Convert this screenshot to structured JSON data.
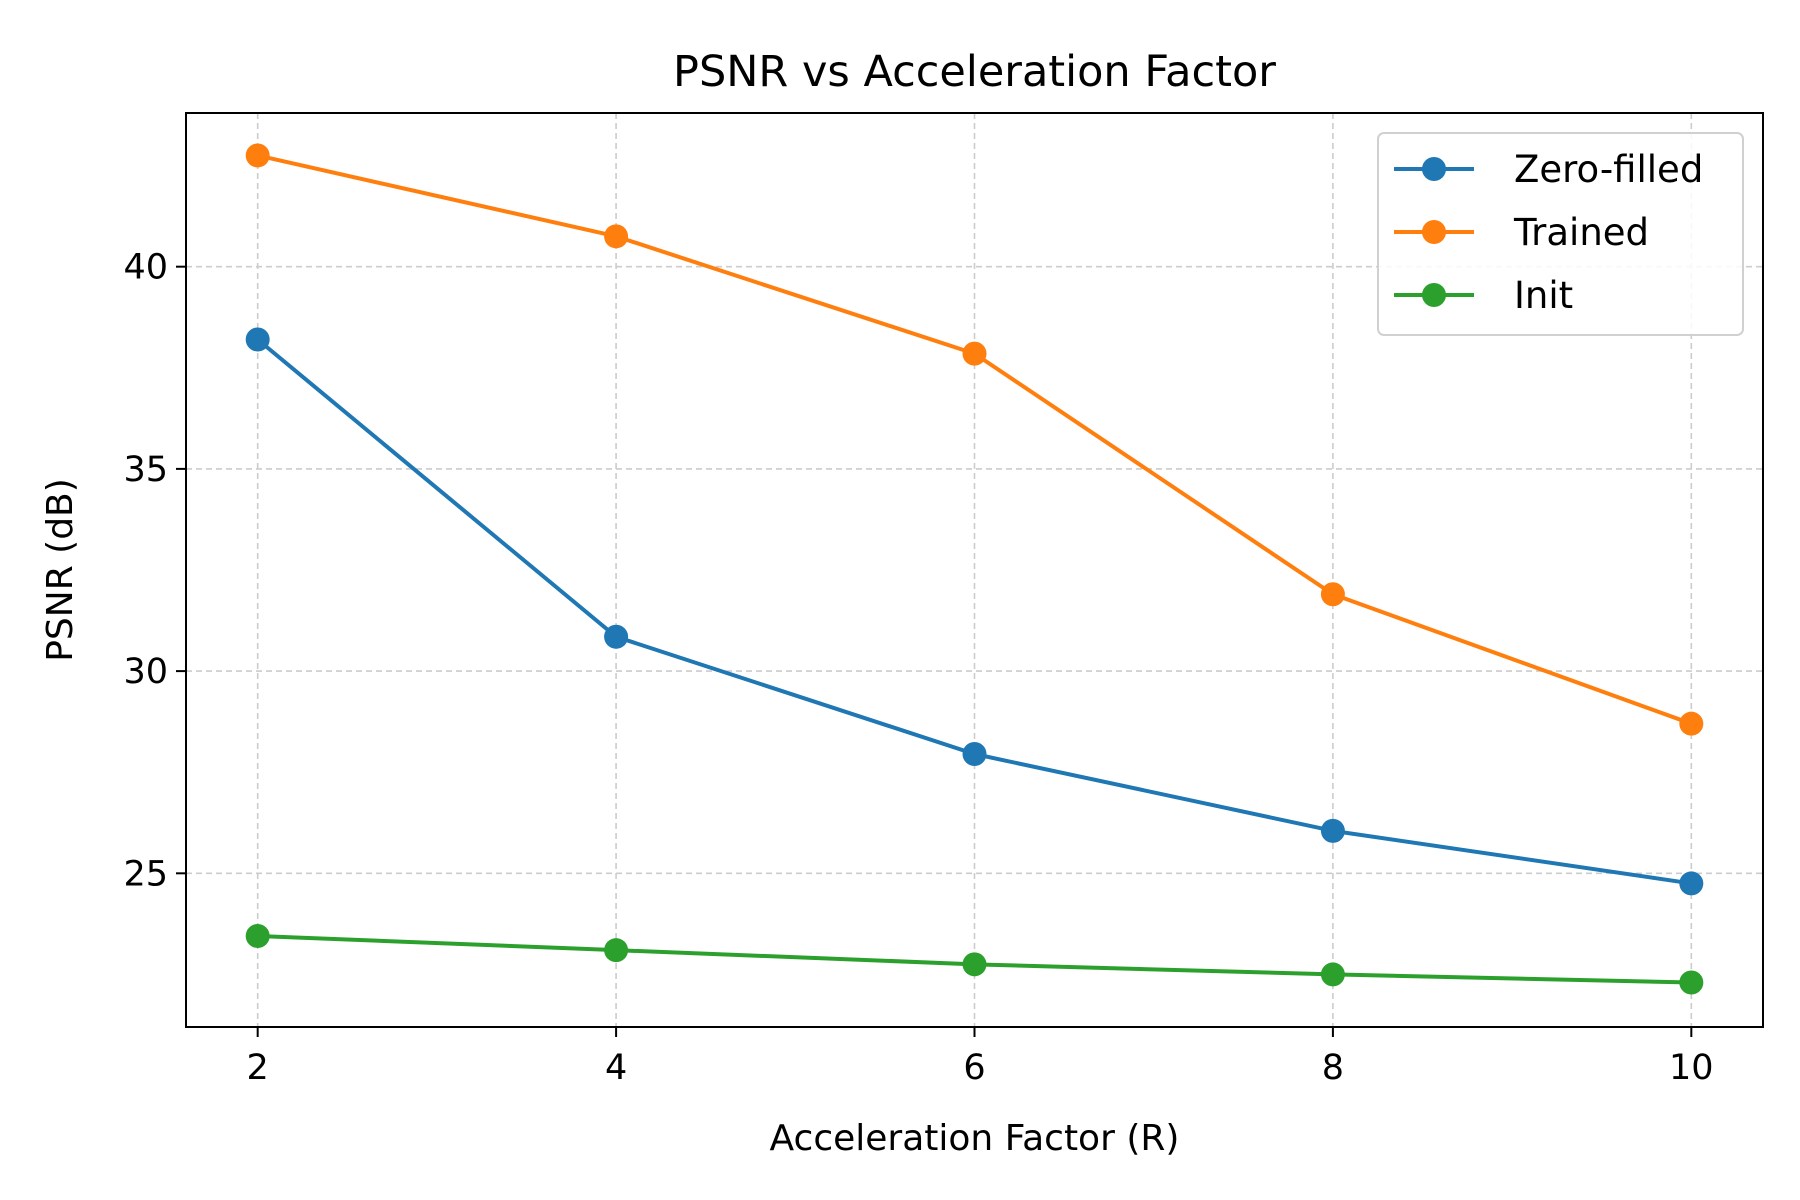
{
  "chart_data": {
    "type": "line",
    "title": "PSNR vs Acceleration Factor",
    "xlabel": "Acceleration Factor (R)",
    "ylabel": "PSNR (dB)",
    "x": [
      2,
      4,
      6,
      8,
      10
    ],
    "xticks": [
      "2",
      "4",
      "6",
      "8",
      "10"
    ],
    "yticks": [
      "25",
      "30",
      "35",
      "40"
    ],
    "xlim": [
      1.6,
      10.4
    ],
    "ylim": [
      21.2,
      43.8
    ],
    "grid": true,
    "grid_style": "dashed",
    "legend_position": "top-right",
    "series": [
      {
        "name": "Zero-filled",
        "color": "#1f77b4",
        "marker": "circle",
        "values": [
          38.2,
          30.85,
          27.95,
          26.05,
          24.75
        ]
      },
      {
        "name": "Trained",
        "color": "#ff7f0e",
        "marker": "circle",
        "values": [
          42.75,
          40.75,
          37.85,
          31.9,
          28.7
        ]
      },
      {
        "name": "Init",
        "color": "#2ca02c",
        "marker": "circle",
        "values": [
          23.45,
          23.1,
          22.75,
          22.5,
          22.3
        ]
      }
    ]
  }
}
